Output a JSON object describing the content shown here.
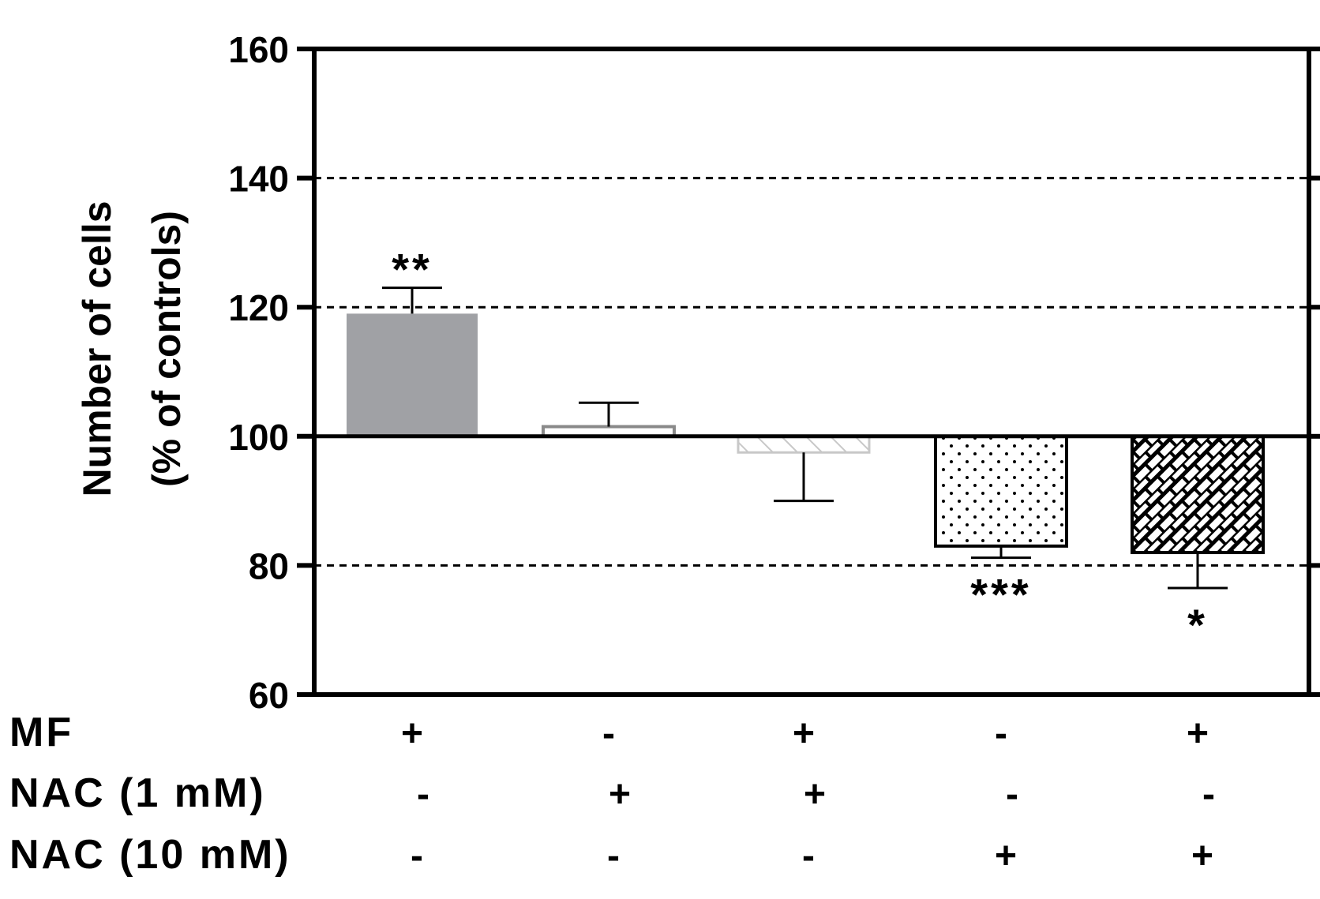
{
  "chart_data": {
    "type": "bar",
    "ylabel_line1": "Number of cells",
    "ylabel_line2": "(% of controls)",
    "ylim": [
      60,
      160
    ],
    "yticks": [
      60,
      80,
      100,
      120,
      140,
      160
    ],
    "baseline": 100,
    "gridlines": [
      80,
      120,
      140
    ],
    "bars": [
      {
        "value": 119,
        "error": 4,
        "sig": "**",
        "fill": "#a0a1a5",
        "pattern": "solid"
      },
      {
        "value": 101.5,
        "error": 3.7,
        "sig": "",
        "fill": "#ffffff",
        "pattern": "open"
      },
      {
        "value": 97.5,
        "error": 7.5,
        "sig": "",
        "fill": "#ffffff",
        "pattern": "hatch-light"
      },
      {
        "value": 83,
        "error": 1.8,
        "sig": "***",
        "fill": "#ffffff",
        "pattern": "dots"
      },
      {
        "value": 82,
        "error": 5.5,
        "sig": "*",
        "fill": "#ffffff",
        "pattern": "brick"
      }
    ],
    "conditions": [
      {
        "label": "MF",
        "values": [
          "+",
          "-",
          "+",
          "-",
          "+"
        ]
      },
      {
        "label": "NAC (1 mM)",
        "values": [
          "-",
          "+",
          "+",
          "-",
          "-"
        ]
      },
      {
        "label": "NAC (10 mM)",
        "values": [
          "-",
          "-",
          "-",
          "+",
          "+"
        ]
      }
    ]
  }
}
